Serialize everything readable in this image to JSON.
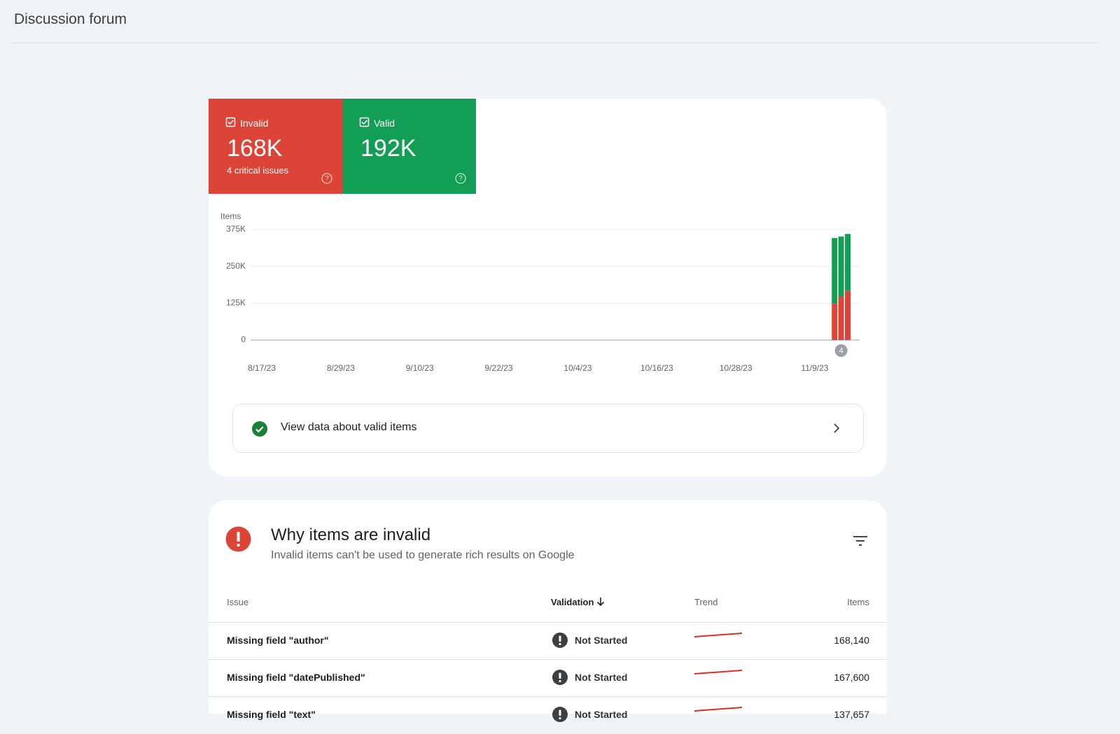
{
  "header": {
    "title": "Discussion forum"
  },
  "summary": {
    "invalid": {
      "value": "168K",
      "note": "4 critical issues"
    },
    "valid": {
      "value": "192K"
    }
  },
  "chart_data": {
    "type": "bar",
    "stacked": true,
    "y_label": "Items",
    "categories": [
      "8/17/23",
      null,
      null,
      null,
      null,
      null,
      null,
      null,
      null,
      null,
      null,
      null,
      "8/29/23",
      null,
      null,
      null,
      null,
      null,
      null,
      null,
      null,
      null,
      null,
      null,
      "9/10/23",
      null,
      null,
      null,
      null,
      null,
      null,
      null,
      null,
      null,
      null,
      null,
      "9/22/23",
      null,
      null,
      null,
      null,
      null,
      null,
      null,
      null,
      null,
      null,
      null,
      "10/4/23",
      null,
      null,
      null,
      null,
      null,
      null,
      null,
      null,
      null,
      null,
      null,
      "10/16/23",
      null,
      null,
      null,
      null,
      null,
      null,
      null,
      null,
      null,
      null,
      null,
      "10/28/23",
      null,
      null,
      null,
      null,
      null,
      null,
      null,
      null,
      null,
      null,
      null,
      "11/9/23",
      null,
      null,
      null,
      null,
      null
    ],
    "series": [
      {
        "name": "Invalid",
        "color": "#dc4437",
        "values": [
          null,
          null,
          null,
          null,
          null,
          null,
          null,
          null,
          null,
          null,
          null,
          null,
          null,
          null,
          null,
          null,
          null,
          null,
          null,
          null,
          null,
          null,
          null,
          null,
          null,
          null,
          null,
          null,
          null,
          null,
          null,
          null,
          null,
          null,
          null,
          null,
          null,
          null,
          null,
          null,
          null,
          null,
          null,
          null,
          null,
          null,
          null,
          null,
          null,
          null,
          null,
          null,
          null,
          null,
          null,
          null,
          null,
          null,
          null,
          null,
          null,
          null,
          null,
          null,
          null,
          null,
          null,
          null,
          null,
          null,
          null,
          null,
          null,
          null,
          null,
          null,
          null,
          null,
          null,
          null,
          null,
          null,
          null,
          null,
          null,
          null,
          null,
          123000,
          147000,
          168000
        ]
      },
      {
        "name": "Valid",
        "color": "#139e56",
        "values": [
          null,
          null,
          null,
          null,
          null,
          null,
          null,
          null,
          null,
          null,
          null,
          null,
          null,
          null,
          null,
          null,
          null,
          null,
          null,
          null,
          null,
          null,
          null,
          null,
          null,
          null,
          null,
          null,
          null,
          null,
          null,
          null,
          null,
          null,
          null,
          null,
          null,
          null,
          null,
          null,
          null,
          null,
          null,
          null,
          null,
          null,
          null,
          null,
          null,
          null,
          null,
          null,
          null,
          null,
          null,
          null,
          null,
          null,
          null,
          null,
          null,
          null,
          null,
          null,
          null,
          null,
          null,
          null,
          null,
          null,
          null,
          null,
          null,
          null,
          null,
          null,
          null,
          null,
          null,
          null,
          null,
          null,
          null,
          null,
          null,
          null,
          null,
          223000,
          204000,
          192000
        ]
      }
    ],
    "ylim": [
      0,
      375000
    ],
    "yticks": [
      0,
      {
        "value": 125000,
        "label": "125K"
      },
      {
        "value": 250000,
        "label": "250K"
      },
      {
        "value": 375000,
        "label": "375K"
      }
    ],
    "grid": true,
    "annotation": "4"
  },
  "valid_link": "View data about valid items",
  "issues_section": {
    "title": "Why items are invalid",
    "subtitle": "Invalid items can't be used to generate rich results on Google"
  },
  "table": {
    "columns": [
      "Issue",
      "Validation",
      "Trend",
      "Items"
    ],
    "rows": [
      [
        "Missing field \"author\"",
        "Not Started",
        "168,140"
      ],
      [
        "Missing field \"datePublished\"",
        "Not Started",
        "167,600"
      ],
      [
        "Missing field \"text\"",
        "Not Started",
        "137,657"
      ]
    ]
  }
}
